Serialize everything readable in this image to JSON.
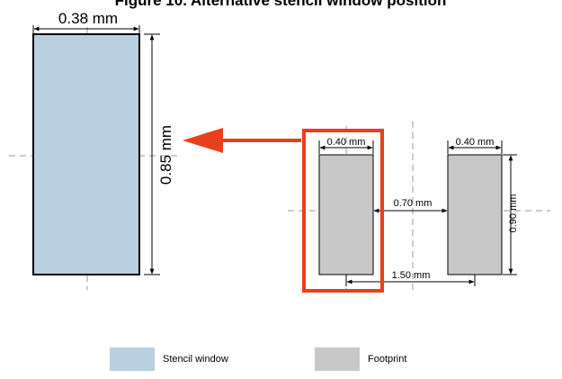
{
  "title": "Figure 10. Alternative stencil window position",
  "stencil": {
    "width_label": "0.38 mm",
    "height_label": "0.85 mm",
    "fill": "#b8d0df",
    "stroke": "#000000"
  },
  "footprint": {
    "pad_width_label_left": "0.40 mm",
    "pad_width_label_right": "0.40 mm",
    "gap_label": "0.70 mm",
    "pitch_label": "1.50 mm",
    "pad_height_label": "0.90 mm",
    "fill": "#c8c8c8",
    "highlight_color": "#e8401c"
  },
  "legend": {
    "stencil_label": "Stencil window",
    "footprint_label": "Footprint"
  }
}
